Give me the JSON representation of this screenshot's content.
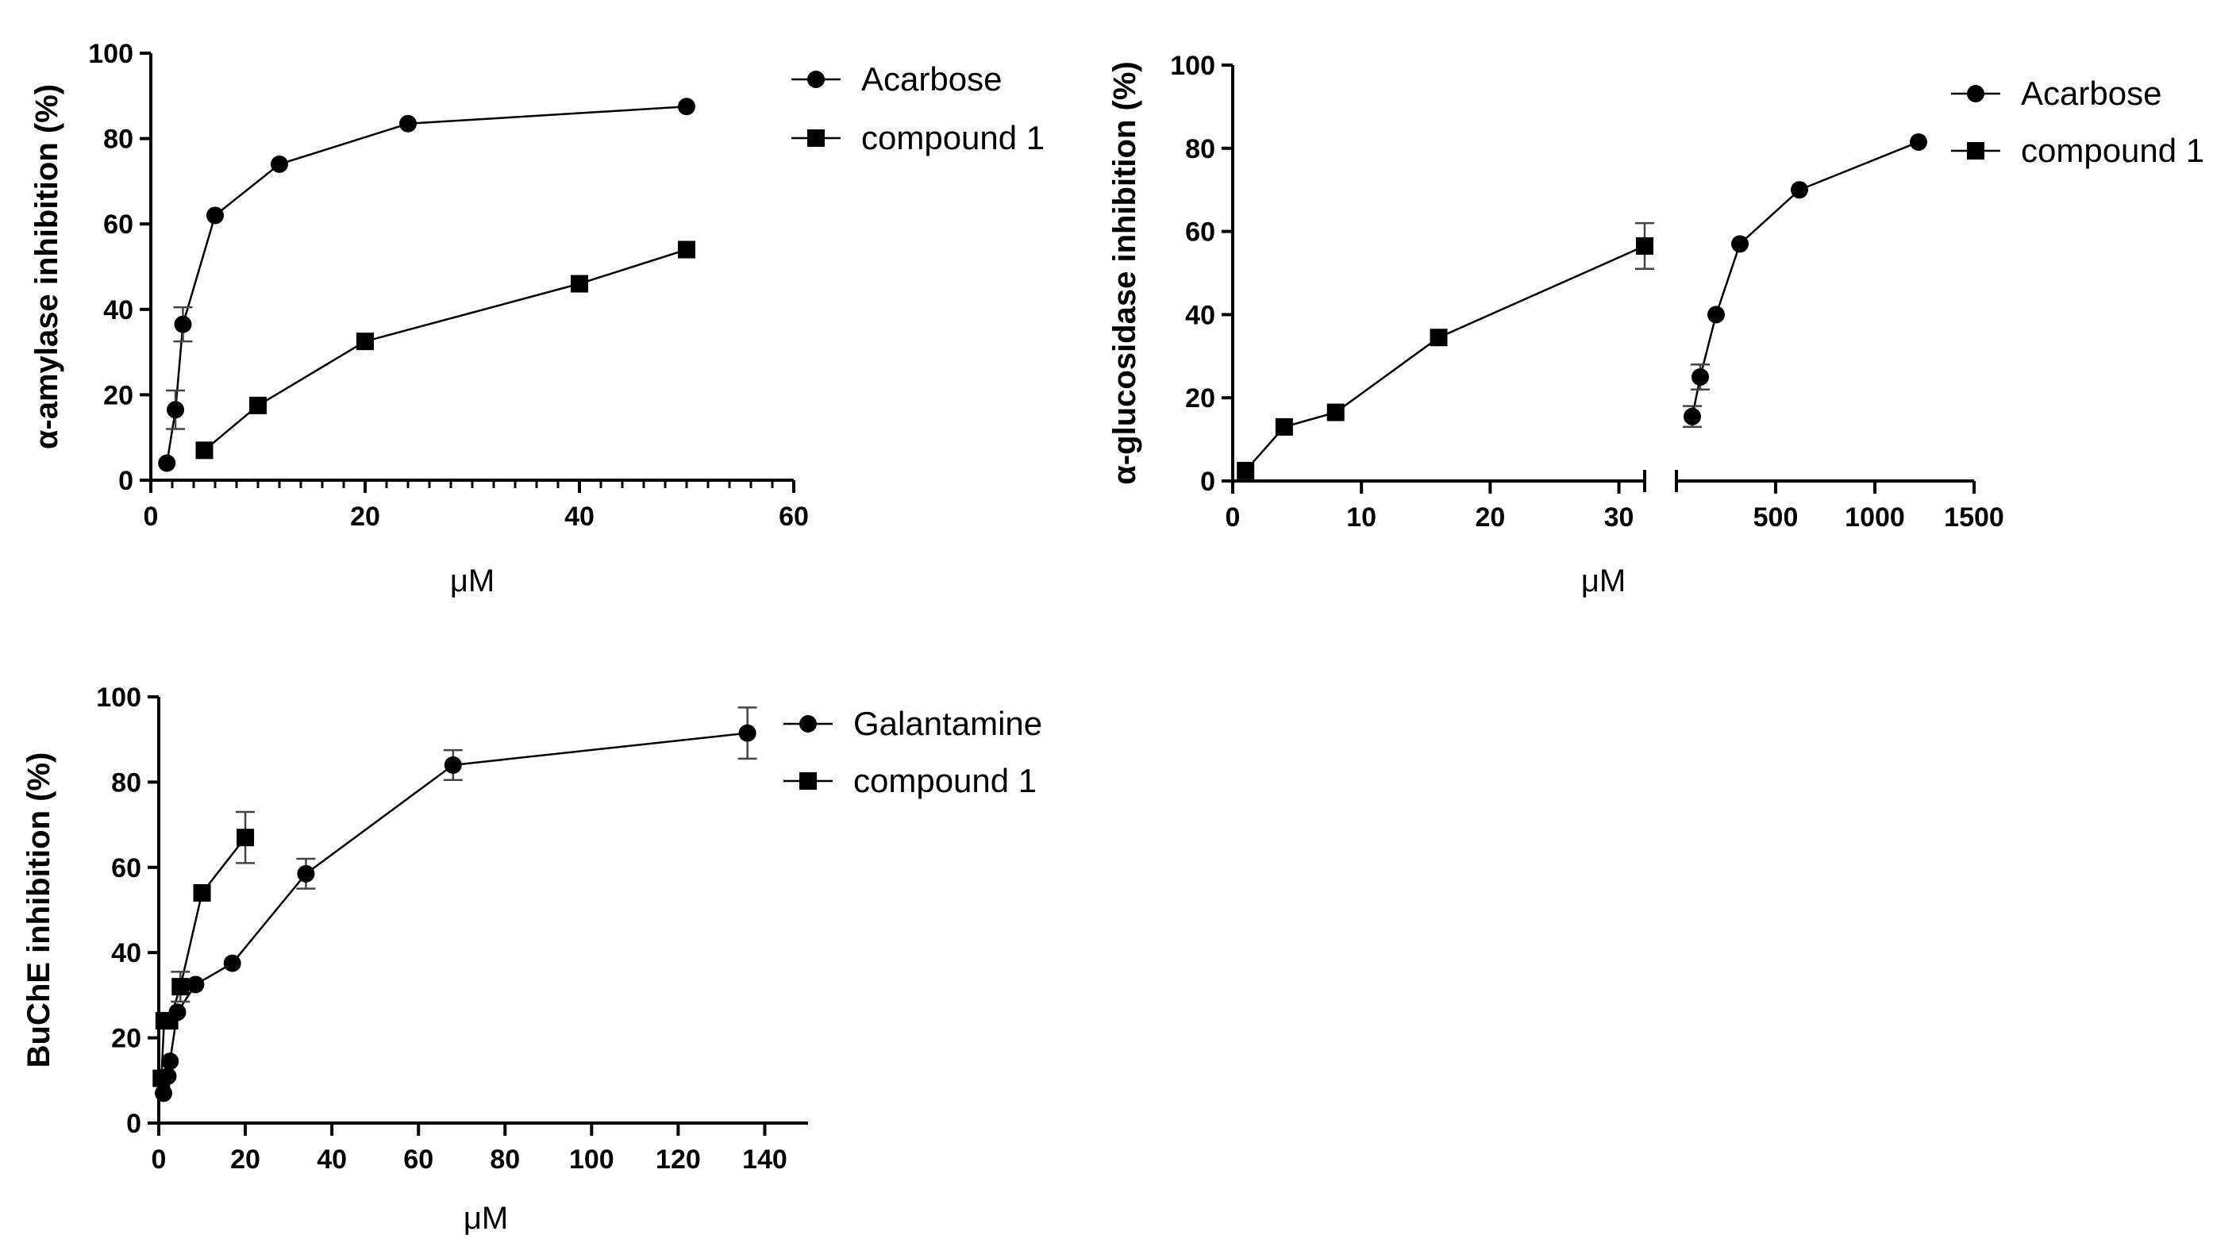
{
  "chart_data": [
    {
      "id": "amylase",
      "type": "line",
      "title": "",
      "xlabel": "μM",
      "ylabel": "α-amylase inhibition (%)",
      "xlim": [
        0,
        60
      ],
      "ylim": [
        0,
        100
      ],
      "xticks": [
        0,
        20,
        40,
        60
      ],
      "yticks": [
        0,
        20,
        40,
        60,
        80,
        100
      ],
      "legend_position": "top-right",
      "series": [
        {
          "name": "Acarbose",
          "marker": "circle",
          "points": [
            {
              "x": 1.5,
              "y": 4,
              "err": 0
            },
            {
              "x": 2.3,
              "y": 16.5,
              "err": 4.5
            },
            {
              "x": 3.0,
              "y": 36.5,
              "err": 4
            },
            {
              "x": 6.0,
              "y": 62,
              "err": 0
            },
            {
              "x": 12,
              "y": 74,
              "err": 0
            },
            {
              "x": 24,
              "y": 83.5,
              "err": 0
            },
            {
              "x": 50,
              "y": 87.5,
              "err": 0
            }
          ]
        },
        {
          "name": "compound 1",
          "marker": "square",
          "points": [
            {
              "x": 5,
              "y": 7,
              "err": 0
            },
            {
              "x": 10,
              "y": 17.5,
              "err": 0
            },
            {
              "x": 20,
              "y": 32.5,
              "err": 0
            },
            {
              "x": 40,
              "y": 46,
              "err": 0
            },
            {
              "x": 50,
              "y": 54,
              "err": 0
            }
          ]
        }
      ]
    },
    {
      "id": "glucosidase",
      "type": "line",
      "title": "",
      "xlabel": "μM",
      "ylabel": "α-glucosidase inhibition (%)",
      "ylim": [
        0,
        100
      ],
      "yticks": [
        0,
        20,
        40,
        60,
        80,
        100
      ],
      "x_segments": [
        {
          "range": [
            0,
            32
          ],
          "ticks": [
            0,
            10,
            20,
            30
          ]
        },
        {
          "range": [
            0,
            1500
          ],
          "ticks": [
            500,
            1000,
            1500
          ]
        }
      ],
      "legend_position": "top-right",
      "series": [
        {
          "name": "Acarbose",
          "marker": "circle",
          "segment": 2,
          "points": [
            {
              "x": 80,
              "y": 15.5,
              "err": 2.5
            },
            {
              "x": 120,
              "y": 25,
              "err": 3
            },
            {
              "x": 200,
              "y": 40,
              "err": 0
            },
            {
              "x": 320,
              "y": 57,
              "err": 0
            },
            {
              "x": 620,
              "y": 70,
              "err": 0
            },
            {
              "x": 1220,
              "y": 81.5,
              "err": 0
            }
          ]
        },
        {
          "name": "compound 1",
          "marker": "square",
          "segment": 1,
          "points": [
            {
              "x": 1,
              "y": 2.5,
              "err": 0
            },
            {
              "x": 4,
              "y": 13,
              "err": 0
            },
            {
              "x": 8,
              "y": 16.5,
              "err": 0
            },
            {
              "x": 16,
              "y": 34.5,
              "err": 0
            },
            {
              "x": 32,
              "y": 56.5,
              "err": 5.5
            }
          ]
        }
      ]
    },
    {
      "id": "buche",
      "type": "line",
      "title": "",
      "xlabel": "μM",
      "ylabel": "BuChE inhibition (%)",
      "xlim": [
        0,
        150
      ],
      "ylim": [
        0,
        100
      ],
      "xticks": [
        0,
        20,
        40,
        60,
        80,
        100,
        120,
        140
      ],
      "yticks": [
        0,
        20,
        40,
        60,
        80,
        100
      ],
      "legend_position": "top-right",
      "series": [
        {
          "name": "Galantamine",
          "marker": "circle",
          "points": [
            {
              "x": 1.1,
              "y": 7,
              "err": 0
            },
            {
              "x": 2.1,
              "y": 11,
              "err": 0
            },
            {
              "x": 2.6,
              "y": 14.5,
              "err": 0
            },
            {
              "x": 4.3,
              "y": 26,
              "err": 0
            },
            {
              "x": 8.5,
              "y": 32.5,
              "err": 0
            },
            {
              "x": 17,
              "y": 37.5,
              "err": 0
            },
            {
              "x": 34,
              "y": 58.5,
              "err": 3.5
            },
            {
              "x": 68,
              "y": 84,
              "err": 3.5
            },
            {
              "x": 136,
              "y": 91.5,
              "err": 6
            }
          ]
        },
        {
          "name": "compound 1",
          "marker": "square",
          "points": [
            {
              "x": 0.6,
              "y": 10.5,
              "err": 0
            },
            {
              "x": 1.25,
              "y": 24,
              "err": 0
            },
            {
              "x": 2.5,
              "y": 24,
              "err": 0
            },
            {
              "x": 5,
              "y": 32,
              "err": 3.5
            },
            {
              "x": 10,
              "y": 54,
              "err": 0
            },
            {
              "x": 20,
              "y": 67,
              "err": 6
            }
          ]
        }
      ]
    }
  ]
}
